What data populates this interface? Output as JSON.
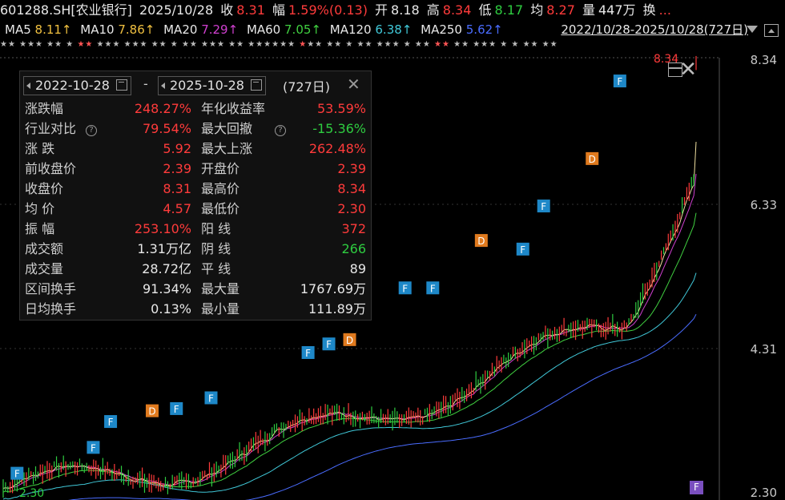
{
  "header": {
    "symbol": "601288.SH[农业银行]",
    "date": "2025/10/28",
    "close_label": "收",
    "close": "8.31",
    "change_label": "幅",
    "change": "1.59%(0.13)",
    "open_label": "开",
    "open": "8.18",
    "high_label": "高",
    "high": "8.34",
    "low_label": "低",
    "low": "8.17",
    "avg_label": "均",
    "avg": "8.27",
    "vol_label": "量",
    "vol": "447万",
    "turnover_label": "换",
    "more": "..."
  },
  "ma": [
    {
      "label": "MA5",
      "value": "8.11↑",
      "color": "#f0c040"
    },
    {
      "label": "MA10",
      "value": "7.86↑",
      "color": "#f0c040"
    },
    {
      "label": "MA20",
      "value": "7.29↑",
      "color": "#d040d0"
    },
    {
      "label": "MA60",
      "value": "7.05↑",
      "color": "#40d040"
    },
    {
      "label": "MA120",
      "value": "6.38↑",
      "color": "#40c8d8"
    },
    {
      "label": "MA250",
      "value": "5.62↑",
      "color": "#4a6cff"
    }
  ],
  "range_link": "2022/10/28-2025/10/28(727日)",
  "yaxis": [
    "8.34",
    "6.33",
    "4.31",
    "2.30"
  ],
  "chart_labels": {
    "max": "8.34",
    "min": "2.30"
  },
  "panel": {
    "start_date": "2022-10-28",
    "end_date": "2025-10-28",
    "sep": "-",
    "days": "(727日)",
    "close_icon": "✕",
    "rows": [
      {
        "k1": "涨跌幅",
        "v1": "248.27%",
        "c1": "red",
        "k2": "年化收益率",
        "v2": "53.59%",
        "c2": "red"
      },
      {
        "k1": "行业对比",
        "q1": true,
        "v1": "79.54%",
        "c1": "red",
        "k2": "最大回撤",
        "q2": true,
        "v2": "-15.36%",
        "c2": "green"
      },
      {
        "k1": "涨  跌",
        "v1": "5.92",
        "c1": "red",
        "k2": "最大上涨",
        "v2": "262.48%",
        "c2": "red"
      },
      {
        "k1": "前收盘价",
        "v1": "2.39",
        "c1": "red",
        "k2": "开盘价",
        "v2": "2.39",
        "c2": "red"
      },
      {
        "k1": "收盘价",
        "v1": "8.31",
        "c1": "red",
        "k2": "最高价",
        "v2": "8.34",
        "c2": "red"
      },
      {
        "k1": "均  价",
        "v1": "4.57",
        "c1": "red",
        "k2": "最低价",
        "v2": "2.30",
        "c2": "red"
      },
      {
        "k1": "振  幅",
        "v1": "253.10%",
        "c1": "red",
        "k2": "阳  线",
        "v2": "372",
        "c2": "red"
      },
      {
        "k1": "成交额",
        "v1": "1.31万亿",
        "c1": "white",
        "k2": "阴  线",
        "v2": "266",
        "c2": "green"
      },
      {
        "k1": "成交量",
        "v1": "28.72亿",
        "c1": "white",
        "k2": "平  线",
        "v2": "89",
        "c2": "white"
      },
      {
        "k1": "区间换手",
        "v1": "91.34%",
        "c1": "white",
        "k2": "最大量",
        "v2": "1767.69万",
        "c2": "white"
      },
      {
        "k1": "日均换手",
        "v1": "0.13%",
        "c1": "white",
        "k2": "最小量",
        "v2": "111.89万",
        "c2": "white"
      }
    ]
  },
  "markers": [
    {
      "t": "F",
      "x": 0.02,
      "y": 0.01
    },
    {
      "t": "F",
      "x": 0.13,
      "y": 0.07
    },
    {
      "t": "F",
      "x": 0.155,
      "y": 0.13
    },
    {
      "t": "D",
      "x": 0.215,
      "y": 0.155
    },
    {
      "t": "F",
      "x": 0.25,
      "y": 0.16
    },
    {
      "t": "F",
      "x": 0.3,
      "y": 0.185
    },
    {
      "t": "F",
      "x": 0.44,
      "y": 0.29
    },
    {
      "t": "F",
      "x": 0.47,
      "y": 0.31
    },
    {
      "t": "D",
      "x": 0.5,
      "y": 0.32
    },
    {
      "t": "F",
      "x": 0.58,
      "y": 0.44
    },
    {
      "t": "F",
      "x": 0.62,
      "y": 0.44
    },
    {
      "t": "D",
      "x": 0.69,
      "y": 0.55
    },
    {
      "t": "F",
      "x": 0.75,
      "y": 0.53
    },
    {
      "t": "F",
      "x": 0.78,
      "y": 0.63
    },
    {
      "t": "D",
      "x": 0.85,
      "y": 0.74
    },
    {
      "t": "F",
      "x": 0.89,
      "y": 0.92
    }
  ],
  "marker_colors": {
    "F": "#1e88c8",
    "D": "#e07a1e"
  },
  "series_colors": {
    "price": "#ff3b3b",
    "ma5": "#f0e0a0",
    "ma20": "#d040d0",
    "ma60": "#40d040",
    "ma120": "#40c8d8",
    "ma250": "#4a6cff"
  },
  "corner_badge": "F"
}
